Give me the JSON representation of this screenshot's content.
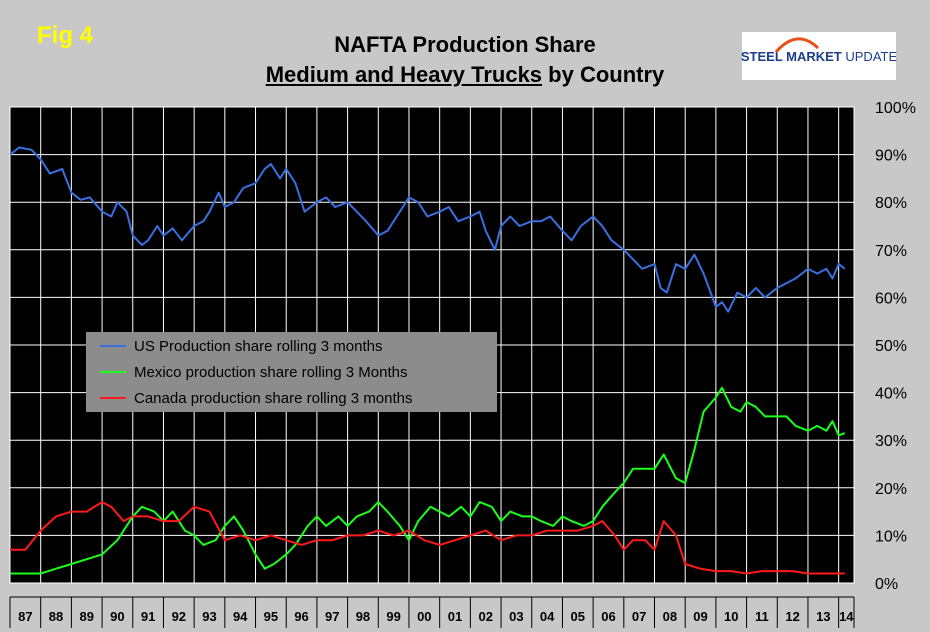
{
  "fig_label": "Fig 4",
  "title_line1": "NAFTA Production Share",
  "title_line2_underlined": "Medium and Heavy Trucks",
  "title_line2_rest": " by Country",
  "logo": {
    "bold": "STEEL MARKET",
    "light": "UPDATE"
  },
  "chart_data": {
    "type": "line",
    "x_range": [
      1987,
      2014.5
    ],
    "ylim": [
      0,
      100
    ],
    "y_tick_labels": [
      "0%",
      "10%",
      "20%",
      "30%",
      "40%",
      "50%",
      "60%",
      "70%",
      "80%",
      "90%",
      "100%"
    ],
    "x_tick_labels": [
      "87",
      "88",
      "89",
      "90",
      "91",
      "92",
      "93",
      "94",
      "95",
      "96",
      "97",
      "98",
      "99",
      "00",
      "01",
      "02",
      "03",
      "04",
      "05",
      "06",
      "07",
      "08",
      "09",
      "10",
      "11",
      "12",
      "13",
      "14"
    ],
    "grid": true,
    "legend_position": "center-left",
    "series": [
      {
        "name": "US Production share rolling 3 months",
        "color": "#3a6fe0",
        "points": [
          [
            1987.0,
            90
          ],
          [
            1987.3,
            91.5
          ],
          [
            1987.7,
            91
          ],
          [
            1988.0,
            89
          ],
          [
            1988.3,
            86
          ],
          [
            1988.7,
            87
          ],
          [
            1989.0,
            82
          ],
          [
            1989.3,
            80.5
          ],
          [
            1989.6,
            81
          ],
          [
            1990.0,
            78
          ],
          [
            1990.3,
            77
          ],
          [
            1990.5,
            80
          ],
          [
            1990.8,
            78
          ],
          [
            1991.0,
            73
          ],
          [
            1991.3,
            71
          ],
          [
            1991.5,
            72
          ],
          [
            1991.8,
            75
          ],
          [
            1992.0,
            73
          ],
          [
            1992.3,
            74.5
          ],
          [
            1992.6,
            72
          ],
          [
            1993.0,
            75
          ],
          [
            1993.3,
            76
          ],
          [
            1993.5,
            78
          ],
          [
            1993.8,
            82
          ],
          [
            1994.0,
            79
          ],
          [
            1994.3,
            80
          ],
          [
            1994.6,
            83
          ],
          [
            1995.0,
            84
          ],
          [
            1995.3,
            87
          ],
          [
            1995.5,
            88
          ],
          [
            1995.8,
            85
          ],
          [
            1996.0,
            87
          ],
          [
            1996.3,
            84
          ],
          [
            1996.6,
            78
          ],
          [
            1997.0,
            80
          ],
          [
            1997.3,
            81
          ],
          [
            1997.6,
            79
          ],
          [
            1998.0,
            80
          ],
          [
            1998.3,
            78
          ],
          [
            1998.6,
            76
          ],
          [
            1999.0,
            73
          ],
          [
            1999.3,
            74
          ],
          [
            1999.6,
            77
          ],
          [
            2000.0,
            81
          ],
          [
            2000.3,
            80
          ],
          [
            2000.6,
            77
          ],
          [
            2001.0,
            78
          ],
          [
            2001.3,
            79
          ],
          [
            2001.6,
            76
          ],
          [
            2002.0,
            77
          ],
          [
            2002.3,
            78
          ],
          [
            2002.5,
            74
          ],
          [
            2002.8,
            70
          ],
          [
            2003.0,
            75
          ],
          [
            2003.3,
            77
          ],
          [
            2003.6,
            75
          ],
          [
            2004.0,
            76
          ],
          [
            2004.3,
            76
          ],
          [
            2004.6,
            77
          ],
          [
            2005.0,
            74
          ],
          [
            2005.3,
            72
          ],
          [
            2005.6,
            75
          ],
          [
            2006.0,
            77
          ],
          [
            2006.3,
            75
          ],
          [
            2006.6,
            72
          ],
          [
            2007.0,
            70
          ],
          [
            2007.3,
            68
          ],
          [
            2007.6,
            66
          ],
          [
            2008.0,
            67
          ],
          [
            2008.2,
            62
          ],
          [
            2008.4,
            61
          ],
          [
            2008.7,
            67
          ],
          [
            2009.0,
            66
          ],
          [
            2009.3,
            69
          ],
          [
            2009.6,
            65
          ],
          [
            2010.0,
            58
          ],
          [
            2010.2,
            59
          ],
          [
            2010.4,
            57
          ],
          [
            2010.7,
            61
          ],
          [
            2011.0,
            60
          ],
          [
            2011.3,
            62
          ],
          [
            2011.6,
            60
          ],
          [
            2012.0,
            62
          ],
          [
            2012.3,
            63
          ],
          [
            2012.6,
            64
          ],
          [
            2013.0,
            66
          ],
          [
            2013.3,
            65
          ],
          [
            2013.6,
            66
          ],
          [
            2013.8,
            64
          ],
          [
            2014.0,
            67
          ],
          [
            2014.2,
            66
          ]
        ]
      },
      {
        "name": "Mexico production share rolling 3 Months",
        "color": "#1aff1a",
        "points": [
          [
            1987.0,
            2
          ],
          [
            1987.5,
            2
          ],
          [
            1988.0,
            2
          ],
          [
            1988.5,
            3
          ],
          [
            1989.0,
            4
          ],
          [
            1989.5,
            5
          ],
          [
            1990.0,
            6
          ],
          [
            1990.5,
            9
          ],
          [
            1991.0,
            14
          ],
          [
            1991.3,
            16
          ],
          [
            1991.7,
            15
          ],
          [
            1992.0,
            13
          ],
          [
            1992.3,
            15
          ],
          [
            1992.7,
            11
          ],
          [
            1993.0,
            10
          ],
          [
            1993.3,
            8
          ],
          [
            1993.7,
            9
          ],
          [
            1994.0,
            12
          ],
          [
            1994.3,
            14
          ],
          [
            1994.6,
            11
          ],
          [
            1995.0,
            6
          ],
          [
            1995.3,
            3
          ],
          [
            1995.6,
            4
          ],
          [
            1996.0,
            6
          ],
          [
            1996.3,
            8
          ],
          [
            1996.7,
            12
          ],
          [
            1997.0,
            14
          ],
          [
            1997.3,
            12
          ],
          [
            1997.7,
            14
          ],
          [
            1998.0,
            12
          ],
          [
            1998.3,
            14
          ],
          [
            1998.7,
            15
          ],
          [
            1999.0,
            17
          ],
          [
            1999.3,
            15
          ],
          [
            1999.7,
            12
          ],
          [
            2000.0,
            9
          ],
          [
            2000.3,
            13
          ],
          [
            2000.7,
            16
          ],
          [
            2001.0,
            15
          ],
          [
            2001.3,
            14
          ],
          [
            2001.7,
            16
          ],
          [
            2002.0,
            14
          ],
          [
            2002.3,
            17
          ],
          [
            2002.7,
            16
          ],
          [
            2003.0,
            13
          ],
          [
            2003.3,
            15
          ],
          [
            2003.7,
            14
          ],
          [
            2004.0,
            14
          ],
          [
            2004.3,
            13
          ],
          [
            2004.7,
            12
          ],
          [
            2005.0,
            14
          ],
          [
            2005.3,
            13
          ],
          [
            2005.7,
            12
          ],
          [
            2006.0,
            13
          ],
          [
            2006.3,
            16
          ],
          [
            2006.7,
            19
          ],
          [
            2007.0,
            21
          ],
          [
            2007.3,
            24
          ],
          [
            2007.7,
            24
          ],
          [
            2008.0,
            24
          ],
          [
            2008.3,
            27
          ],
          [
            2008.7,
            22
          ],
          [
            2009.0,
            21
          ],
          [
            2009.3,
            28
          ],
          [
            2009.6,
            36
          ],
          [
            2010.0,
            39
          ],
          [
            2010.2,
            41
          ],
          [
            2010.5,
            37
          ],
          [
            2010.8,
            36
          ],
          [
            2011.0,
            38
          ],
          [
            2011.3,
            37
          ],
          [
            2011.6,
            35
          ],
          [
            2012.0,
            35
          ],
          [
            2012.3,
            35
          ],
          [
            2012.6,
            33
          ],
          [
            2013.0,
            32
          ],
          [
            2013.3,
            33
          ],
          [
            2013.6,
            32
          ],
          [
            2013.8,
            34
          ],
          [
            2014.0,
            31
          ],
          [
            2014.2,
            31.5
          ]
        ]
      },
      {
        "name": "Canada production share rolling 3 months",
        "color": "#ff1a1a",
        "points": [
          [
            1987.0,
            7
          ],
          [
            1987.5,
            7
          ],
          [
            1988.0,
            11
          ],
          [
            1988.5,
            14
          ],
          [
            1989.0,
            15
          ],
          [
            1989.5,
            15
          ],
          [
            1990.0,
            17
          ],
          [
            1990.3,
            16
          ],
          [
            1990.7,
            13
          ],
          [
            1991.0,
            14
          ],
          [
            1991.5,
            14
          ],
          [
            1992.0,
            13
          ],
          [
            1992.5,
            13
          ],
          [
            1993.0,
            16
          ],
          [
            1993.5,
            15
          ],
          [
            1994.0,
            9
          ],
          [
            1994.5,
            10
          ],
          [
            1995.0,
            9
          ],
          [
            1995.5,
            10
          ],
          [
            1996.0,
            9
          ],
          [
            1996.5,
            8
          ],
          [
            1997.0,
            9
          ],
          [
            1997.5,
            9
          ],
          [
            1998.0,
            10
          ],
          [
            1998.5,
            10
          ],
          [
            1999.0,
            11
          ],
          [
            1999.5,
            10
          ],
          [
            2000.0,
            11
          ],
          [
            2000.5,
            9
          ],
          [
            2001.0,
            8
          ],
          [
            2001.5,
            9
          ],
          [
            2002.0,
            10
          ],
          [
            2002.5,
            11
          ],
          [
            2003.0,
            9
          ],
          [
            2003.5,
            10
          ],
          [
            2004.0,
            10
          ],
          [
            2004.5,
            11
          ],
          [
            2005.0,
            11
          ],
          [
            2005.5,
            11
          ],
          [
            2006.0,
            12
          ],
          [
            2006.3,
            13
          ],
          [
            2006.7,
            10
          ],
          [
            2007.0,
            7
          ],
          [
            2007.3,
            9
          ],
          [
            2007.7,
            9
          ],
          [
            2008.0,
            7
          ],
          [
            2008.3,
            13
          ],
          [
            2008.7,
            10
          ],
          [
            2009.0,
            4
          ],
          [
            2009.5,
            3
          ],
          [
            2010.0,
            2.5
          ],
          [
            2010.5,
            2.5
          ],
          [
            2011.0,
            2
          ],
          [
            2011.5,
            2.5
          ],
          [
            2012.0,
            2.5
          ],
          [
            2012.5,
            2.5
          ],
          [
            2013.0,
            2
          ],
          [
            2013.5,
            2
          ],
          [
            2014.0,
            2
          ],
          [
            2014.2,
            2
          ]
        ]
      }
    ]
  }
}
